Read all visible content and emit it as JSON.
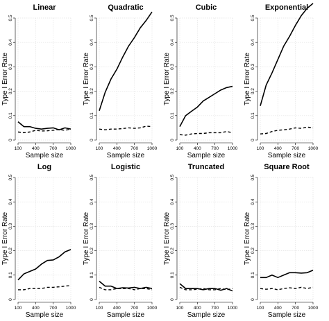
{
  "chart_data": [
    {
      "type": "line",
      "title": "Linear",
      "xlabel": "Sample size",
      "ylabel": "Type I Error Rate",
      "x": [
        100,
        200,
        300,
        400,
        500,
        600,
        700,
        800,
        900,
        1000
      ],
      "xticks": [
        100,
        400,
        700,
        1000
      ],
      "ylim": [
        0,
        0.5
      ],
      "yticks": [
        "0",
        "0.1",
        "0.2",
        "0.3",
        "0.4",
        "0.5"
      ],
      "series": [
        {
          "style": "solid",
          "values": [
            0.075,
            0.055,
            0.055,
            0.048,
            0.045,
            0.048,
            0.05,
            0.042,
            0.05,
            0.045
          ]
        },
        {
          "style": "dashed",
          "values": [
            0.033,
            0.03,
            0.033,
            0.04,
            0.037,
            0.038,
            0.04,
            0.043,
            0.04,
            0.045
          ]
        }
      ]
    },
    {
      "type": "line",
      "title": "Quadratic",
      "xlabel": "Sample size",
      "ylabel": "Type I Error Rate",
      "x": [
        100,
        200,
        300,
        400,
        500,
        600,
        700,
        800,
        900,
        1000
      ],
      "xticks": [
        100,
        400,
        700,
        1000
      ],
      "ylim": [
        0,
        0.5
      ],
      "yticks": [
        "0",
        "0.1",
        "0.2",
        "0.3",
        "0.4",
        "0.5"
      ],
      "series": [
        {
          "style": "solid",
          "values": [
            0.12,
            0.195,
            0.25,
            0.29,
            0.34,
            0.385,
            0.42,
            0.46,
            0.49,
            0.525
          ]
        },
        {
          "style": "dashed",
          "values": [
            0.045,
            0.042,
            0.045,
            0.045,
            0.047,
            0.05,
            0.048,
            0.05,
            0.057,
            0.055
          ]
        }
      ]
    },
    {
      "type": "line",
      "title": "Cubic",
      "xlabel": "Sample size",
      "ylabel": "Type I Error Rate",
      "x": [
        100,
        200,
        300,
        400,
        500,
        600,
        700,
        800,
        900,
        1000
      ],
      "xticks": [
        100,
        400,
        700,
        1000
      ],
      "ylim": [
        0,
        0.5
      ],
      "yticks": [
        "0",
        "0.1",
        "0.2",
        "0.3",
        "0.4",
        "0.5"
      ],
      "series": [
        {
          "style": "solid",
          "values": [
            0.055,
            0.1,
            0.118,
            0.135,
            0.16,
            0.175,
            0.19,
            0.205,
            0.215,
            0.22
          ]
        },
        {
          "style": "dashed",
          "values": [
            0.022,
            0.02,
            0.025,
            0.027,
            0.027,
            0.03,
            0.03,
            0.03,
            0.035,
            0.03
          ]
        }
      ]
    },
    {
      "type": "line",
      "title": "Exponential",
      "xlabel": "Sample size",
      "ylabel": "Type I Error Rate",
      "x": [
        100,
        200,
        300,
        400,
        500,
        600,
        700,
        800,
        900,
        1000
      ],
      "xticks": [
        100,
        400,
        700,
        1000
      ],
      "ylim": [
        0,
        0.5
      ],
      "yticks": [
        "0",
        "0.1",
        "0.2",
        "0.3",
        "0.4",
        "0.5"
      ],
      "series": [
        {
          "style": "solid",
          "values": [
            0.14,
            0.225,
            0.275,
            0.33,
            0.385,
            0.425,
            0.47,
            0.51,
            0.54,
            0.56
          ]
        },
        {
          "style": "dashed",
          "values": [
            0.025,
            0.027,
            0.035,
            0.04,
            0.042,
            0.045,
            0.05,
            0.048,
            0.053,
            0.05
          ]
        }
      ]
    },
    {
      "type": "line",
      "title": "Log",
      "xlabel": "Sample size",
      "ylabel": "Type I Error Rate",
      "x": [
        100,
        200,
        300,
        400,
        500,
        600,
        700,
        800,
        900,
        1000
      ],
      "xticks": [
        100,
        400,
        700,
        1000
      ],
      "ylim": [
        0,
        0.5
      ],
      "yticks": [
        "0",
        "0.1",
        "0.2",
        "0.3",
        "0.4",
        "0.5"
      ],
      "series": [
        {
          "style": "solid",
          "values": [
            0.08,
            0.105,
            0.115,
            0.125,
            0.145,
            0.16,
            0.162,
            0.175,
            0.195,
            0.205
          ]
        },
        {
          "style": "dashed",
          "values": [
            0.04,
            0.04,
            0.045,
            0.045,
            0.045,
            0.05,
            0.05,
            0.052,
            0.055,
            0.057
          ]
        }
      ]
    },
    {
      "type": "line",
      "title": "Logistic",
      "xlabel": "Sample size",
      "ylabel": "Type I Error Rate",
      "x": [
        100,
        200,
        300,
        400,
        500,
        600,
        700,
        800,
        900,
        1000
      ],
      "xticks": [
        100,
        400,
        700,
        1000
      ],
      "ylim": [
        0,
        0.5
      ],
      "yticks": [
        "0",
        "0.1",
        "0.2",
        "0.3",
        "0.4",
        "0.5"
      ],
      "series": [
        {
          "style": "solid",
          "values": [
            0.075,
            0.055,
            0.055,
            0.045,
            0.048,
            0.047,
            0.05,
            0.045,
            0.05,
            0.045
          ]
        },
        {
          "style": "dashed",
          "values": [
            0.05,
            0.04,
            0.04,
            0.045,
            0.045,
            0.045,
            0.04,
            0.045,
            0.045,
            0.04
          ]
        }
      ]
    },
    {
      "type": "line",
      "title": "Truncated",
      "xlabel": "Sample size",
      "ylabel": "Type I Error Rate",
      "x": [
        100,
        200,
        300,
        400,
        500,
        600,
        700,
        800,
        900,
        1000
      ],
      "xticks": [
        100,
        400,
        700,
        1000
      ],
      "ylim": [
        0,
        0.5
      ],
      "yticks": [
        "0",
        "0.1",
        "0.2",
        "0.3",
        "0.4",
        "0.5"
      ],
      "series": [
        {
          "style": "solid",
          "values": [
            0.065,
            0.045,
            0.045,
            0.045,
            0.04,
            0.045,
            0.045,
            0.038,
            0.045,
            0.035
          ]
        },
        {
          "style": "dashed",
          "values": [
            0.05,
            0.04,
            0.04,
            0.042,
            0.045,
            0.04,
            0.04,
            0.045,
            0.04,
            0.045
          ]
        }
      ]
    },
    {
      "type": "line",
      "title": "Square Root",
      "xlabel": "Sample size",
      "ylabel": "Type I Error Rate",
      "x": [
        100,
        200,
        300,
        400,
        500,
        600,
        700,
        800,
        900,
        1000
      ],
      "xticks": [
        100,
        400,
        700,
        1000
      ],
      "ylim": [
        0,
        0.5
      ],
      "yticks": [
        "0",
        "0.1",
        "0.2",
        "0.3",
        "0.4",
        "0.5"
      ],
      "series": [
        {
          "style": "solid",
          "values": [
            0.09,
            0.09,
            0.1,
            0.09,
            0.1,
            0.11,
            0.11,
            0.108,
            0.11,
            0.12
          ]
        },
        {
          "style": "dashed",
          "values": [
            0.045,
            0.042,
            0.045,
            0.04,
            0.045,
            0.048,
            0.045,
            0.05,
            0.045,
            0.05
          ]
        }
      ]
    }
  ]
}
